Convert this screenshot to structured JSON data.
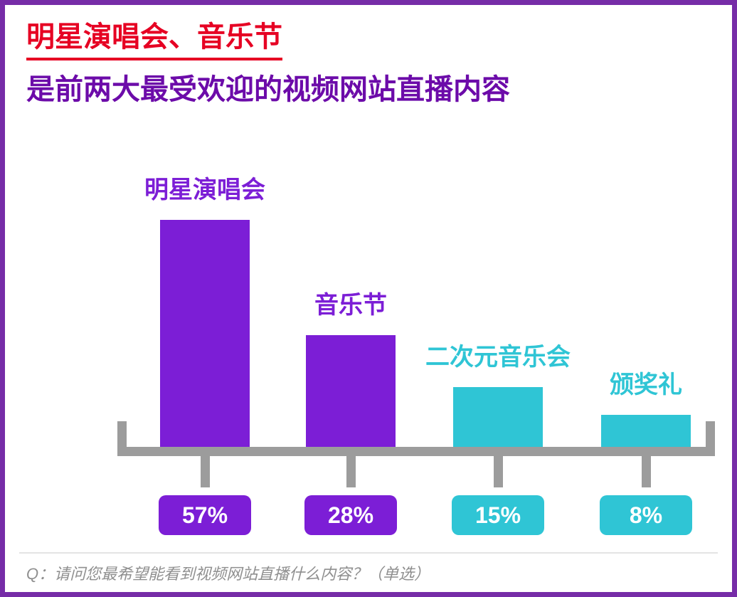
{
  "frame": {
    "border_color": "#762CA7"
  },
  "title": {
    "line1": "明星演唱会、音乐节",
    "line2": "是前两大最受欢迎的视频网站直播内容",
    "line1_color": "#E60023",
    "line2_color": "#6C0BA9"
  },
  "chart_data": {
    "type": "bar",
    "title": "明星演唱会、音乐节是前两大最受欢迎的视频网站直播内容",
    "categories": [
      "明星演唱会",
      "音乐节",
      "二次元音乐会",
      "颁奖礼"
    ],
    "values": [
      57,
      28,
      15,
      8
    ],
    "value_labels": [
      "57%",
      "28%",
      "15%",
      "8%"
    ],
    "unit": "%",
    "bar_colors": [
      "#7C1ED6",
      "#7C1ED6",
      "#2FC5D5",
      "#2FC5D5"
    ],
    "label_colors": [
      "#7C1ED6",
      "#7C1ED6",
      "#2FC5D5",
      "#2FC5D5"
    ],
    "axis_color": "#9C9C9C",
    "ylim": [
      0,
      60
    ],
    "grid": false,
    "legend": "none",
    "value_label_position": "badges-below-axis"
  },
  "footer": {
    "question": "Q：请问您最希望能看到视频网站直播什么内容？（单选）",
    "color": "#8F8F8F"
  }
}
